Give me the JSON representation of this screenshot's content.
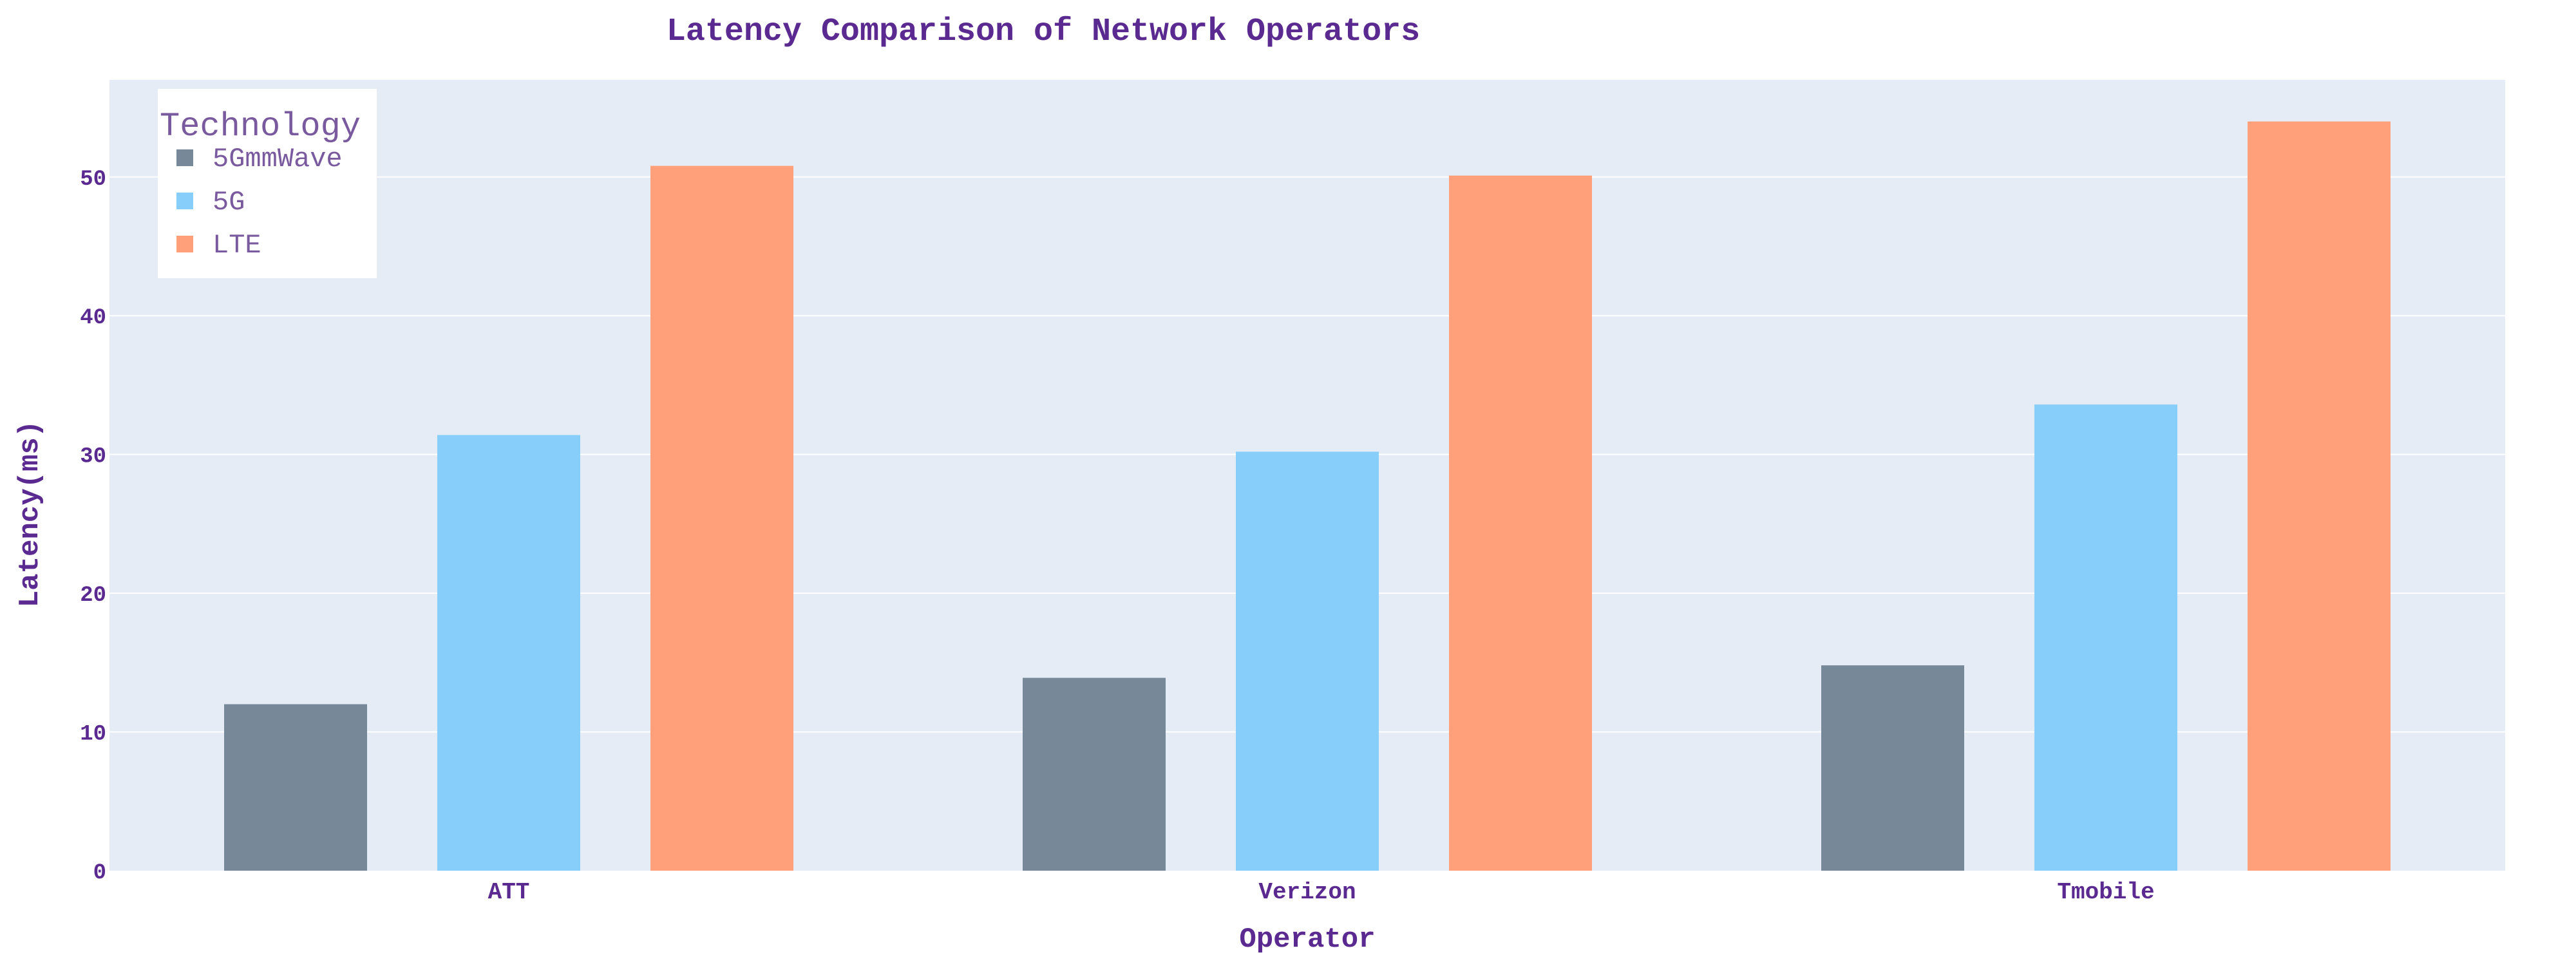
{
  "chart_data": {
    "type": "bar",
    "title": "Latency Comparison of Network Operators",
    "xlabel": "Operator",
    "ylabel": "Latency(ms)",
    "categories": [
      "ATT",
      "Verizon",
      "Tmobile"
    ],
    "ylim": [
      0,
      57
    ],
    "yticks": [
      0,
      10,
      20,
      30,
      40,
      50
    ],
    "grid": true,
    "legend": {
      "title": "Technology",
      "position": "top-left"
    },
    "series": [
      {
        "name": "5GmmWave",
        "values": [
          12.0,
          13.9,
          14.8
        ],
        "color": "#778899"
      },
      {
        "name": "5G",
        "values": [
          31.4,
          30.2,
          33.6
        ],
        "color": "#87cefa"
      },
      {
        "name": "LTE",
        "values": [
          50.8,
          50.1,
          54.0
        ],
        "color": "#ffa07a"
      }
    ]
  },
  "colors": {
    "text": "#5b2a91",
    "legend_text": "#7a5a9e",
    "plot_background": "#e5ecf6",
    "gridline": "#ffffff"
  }
}
